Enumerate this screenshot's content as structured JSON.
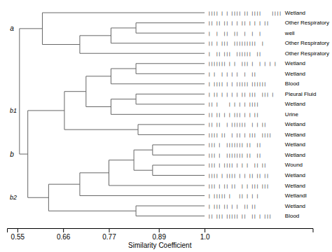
{
  "chart_data": {
    "type": "dendrogram",
    "xlabel": "Similarity Coefficient",
    "xlim": [
      0.525,
      1.26
    ],
    "xticks": [
      0.55,
      0.66,
      0.77,
      0.89,
      {
        "value": 1.0,
        "label": "1.0"
      }
    ],
    "tick_labels": "x",
    "color": "#666666",
    "leaf_x": 1.0,
    "tree": {
      "x": 0.555,
      "children": [
        {
          "x": 0.61,
          "group": "a",
          "children": [
            {
              "label": "Wetland",
              "pattern": "|||| | | |||| || ||||    ||||"
            },
            {
              "x": 0.7,
              "children": [
                {
                  "x": 0.775,
                  "children": [
                    {
                      "x": 0.835,
                      "children": [
                        {
                          "label": "Other Respiratory",
                          "pattern": "|| || || | | || | | | ||"
                        },
                        {
                          "label": "well",
                          "pattern": "|  |  ||  ||  |  |  |"
                        }
                      ]
                    },
                    {
                      "label": "Other Respiratory",
                      "pattern": "|| | |||  |||||||||  |"
                    }
                  ]
                },
                {
                  "label": "Other Respiratory",
                  "pattern": "|  || |||  ||||||  ||"
                }
              ]
            }
          ]
        },
        {
          "x": 0.575,
          "group": "b",
          "children": [
            {
              "x": 0.663,
              "group": "b1",
              "children": [
                {
                  "x": 0.715,
                  "children": [
                    {
                      "x": 0.775,
                      "children": [
                        {
                          "x": 0.835,
                          "children": [
                            {
                              "label": "Wetland",
                              "pattern": "||||||| | |  ||| |  | | | |"
                            },
                            {
                              "label": "Wetland",
                              "pattern": "| |  | | | |  |  ||"
                            }
                          ]
                        },
                        {
                          "label": "Blood",
                          "pattern": "| |||| | | ||||| ||||||"
                        }
                      ]
                    },
                    {
                      "x": 0.775,
                      "children": [
                        {
                          "x": 0.835,
                          "children": [
                            {
                              "label": "Pleural Fluid",
                              "pattern": "| || | | | | || |||  ||| |"
                            },
                            {
                              "label": "Wetland",
                              "pattern": "|| |    | | | | ||||"
                            }
                          ]
                        },
                        {
                          "label": "Urine",
                          "pattern": "|| || | | ||| | | ||"
                        }
                      ]
                    }
                  ]
                },
                {
                  "x": 0.84,
                  "children": [
                    {
                      "label": "Wetland",
                      "pattern": "|| ||  | ||||||  | | ||"
                    },
                    {
                      "label": "Wetland",
                      "pattern": "|||| ||  | || | |||  ||||"
                    }
                  ]
                }
              ]
            },
            {
              "x": 0.625,
              "group": "b2",
              "children": [
                {
                  "x": 0.7,
                  "children": [
                    {
                      "x": 0.77,
                      "children": [
                        {
                          "x": 0.83,
                          "children": [
                            {
                              "x": 0.875,
                              "children": [
                                {
                                  "label": "Wetland",
                                  "pattern": "||| |  ||||||| ||  ||"
                                },
                                {
                                  "label": "Wetland",
                                  "pattern": "||| |  ||||||| ||  ||"
                                }
                              ]
                            },
                            {
                              "x": 0.875,
                              "children": [
                                {
                                  "label": "Wound",
                                  "pattern": "||| | |||| | | |  || ||"
                                },
                                {
                                  "label": "Wetland",
                                  "pattern": "|||| | |||| | | || || ||"
                                }
                              ]
                            }
                          ]
                        },
                        {
                          "label": "Wetland",
                          "pattern": "||| | || ||  | | ||| |||"
                        }
                      ]
                    },
                    {
                      "label": "Wetlandl",
                      "pattern": "| ||||| |   || | | |"
                    }
                  ]
                },
                {
                  "x": 0.835,
                  "children": [
                    {
                      "label": "Wetland",
                      "pattern": "| ||| || | |  || ||"
                    },
                    {
                      "label": "Blood",
                      "pattern": "|| ||| ||||| ||  || | |||"
                    }
                  ]
                }
              ]
            }
          ]
        }
      ]
    }
  }
}
